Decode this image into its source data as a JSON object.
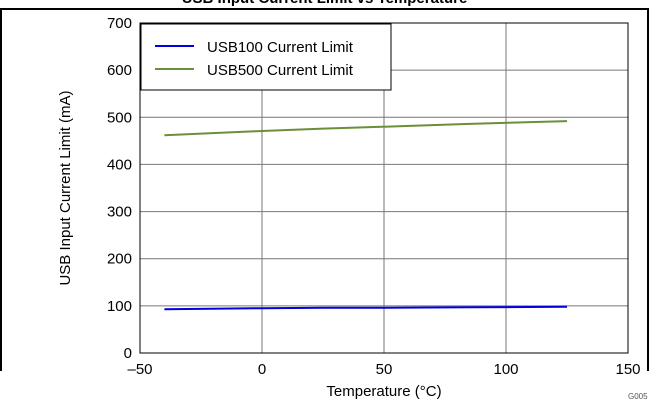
{
  "page_title": "USB Input Current Limit vs Temperature",
  "chart_data": {
    "type": "line",
    "title": "USB Input Current Limit vs Temperature",
    "xlabel": "Temperature (°C)",
    "ylabel": "USB Input Current Limit (mA)",
    "xlim": [
      -50,
      150
    ],
    "ylim": [
      0,
      700
    ],
    "x_ticks": [
      "–50",
      "0",
      "50",
      "100",
      "150"
    ],
    "y_ticks": [
      "0",
      "100",
      "200",
      "300",
      "400",
      "500",
      "600",
      "700"
    ],
    "grid": true,
    "legend_position": "top-left",
    "series": [
      {
        "name": "USB100 Current Limit",
        "color": "#0000e0",
        "x": [
          -40,
          0,
          25,
          50,
          85,
          125
        ],
        "y": [
          93,
          95,
          96,
          96,
          97,
          98
        ]
      },
      {
        "name": "USB500 Current Limit",
        "color": "#6b8e3a",
        "x": [
          -40,
          0,
          25,
          50,
          85,
          125
        ],
        "y": [
          462,
          471,
          476,
          480,
          486,
          492
        ]
      }
    ],
    "figure_code": "G005"
  }
}
